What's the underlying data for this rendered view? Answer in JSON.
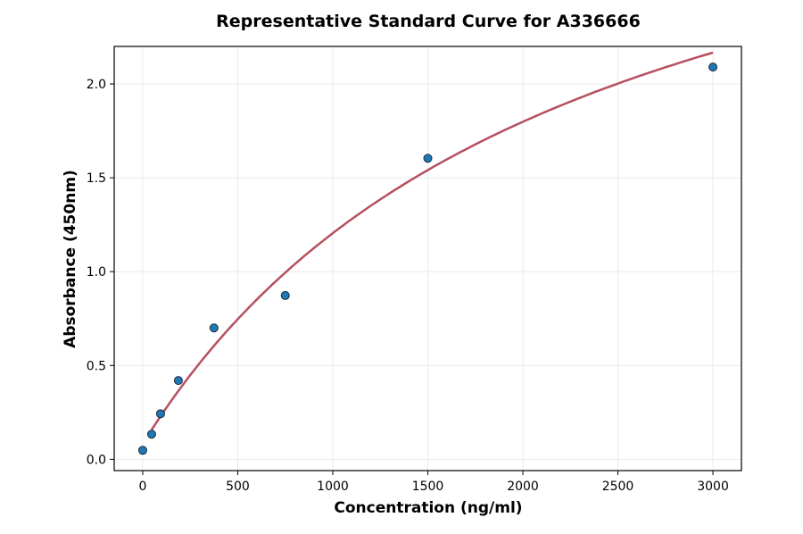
{
  "chart_data": {
    "type": "scatter",
    "title": "Representative Standard Curve for A336666",
    "xlabel": "Concentration (ng/ml)",
    "ylabel": "Absorbance (450nm)",
    "xlim": [
      -150,
      3150
    ],
    "ylim": [
      -0.06,
      2.2
    ],
    "xticks": [
      "0",
      "500",
      "1000",
      "1500",
      "2000",
      "2500",
      "3000"
    ],
    "yticks": [
      "0.0",
      "0.5",
      "1.0",
      "1.5",
      "2.0"
    ],
    "grid": true,
    "series": [
      {
        "type": "scatter",
        "x": [
          0,
          46.875,
          93.75,
          187.5,
          375,
          750,
          1500,
          3000
        ],
        "y": [
          0.048,
          0.134,
          0.243,
          0.42,
          0.7,
          0.873,
          1.604,
          2.09
        ],
        "color": "#1f77b4"
      },
      {
        "type": "line",
        "x_range": [
          46.875,
          3000
        ],
        "color": "#b5505f"
      }
    ]
  }
}
